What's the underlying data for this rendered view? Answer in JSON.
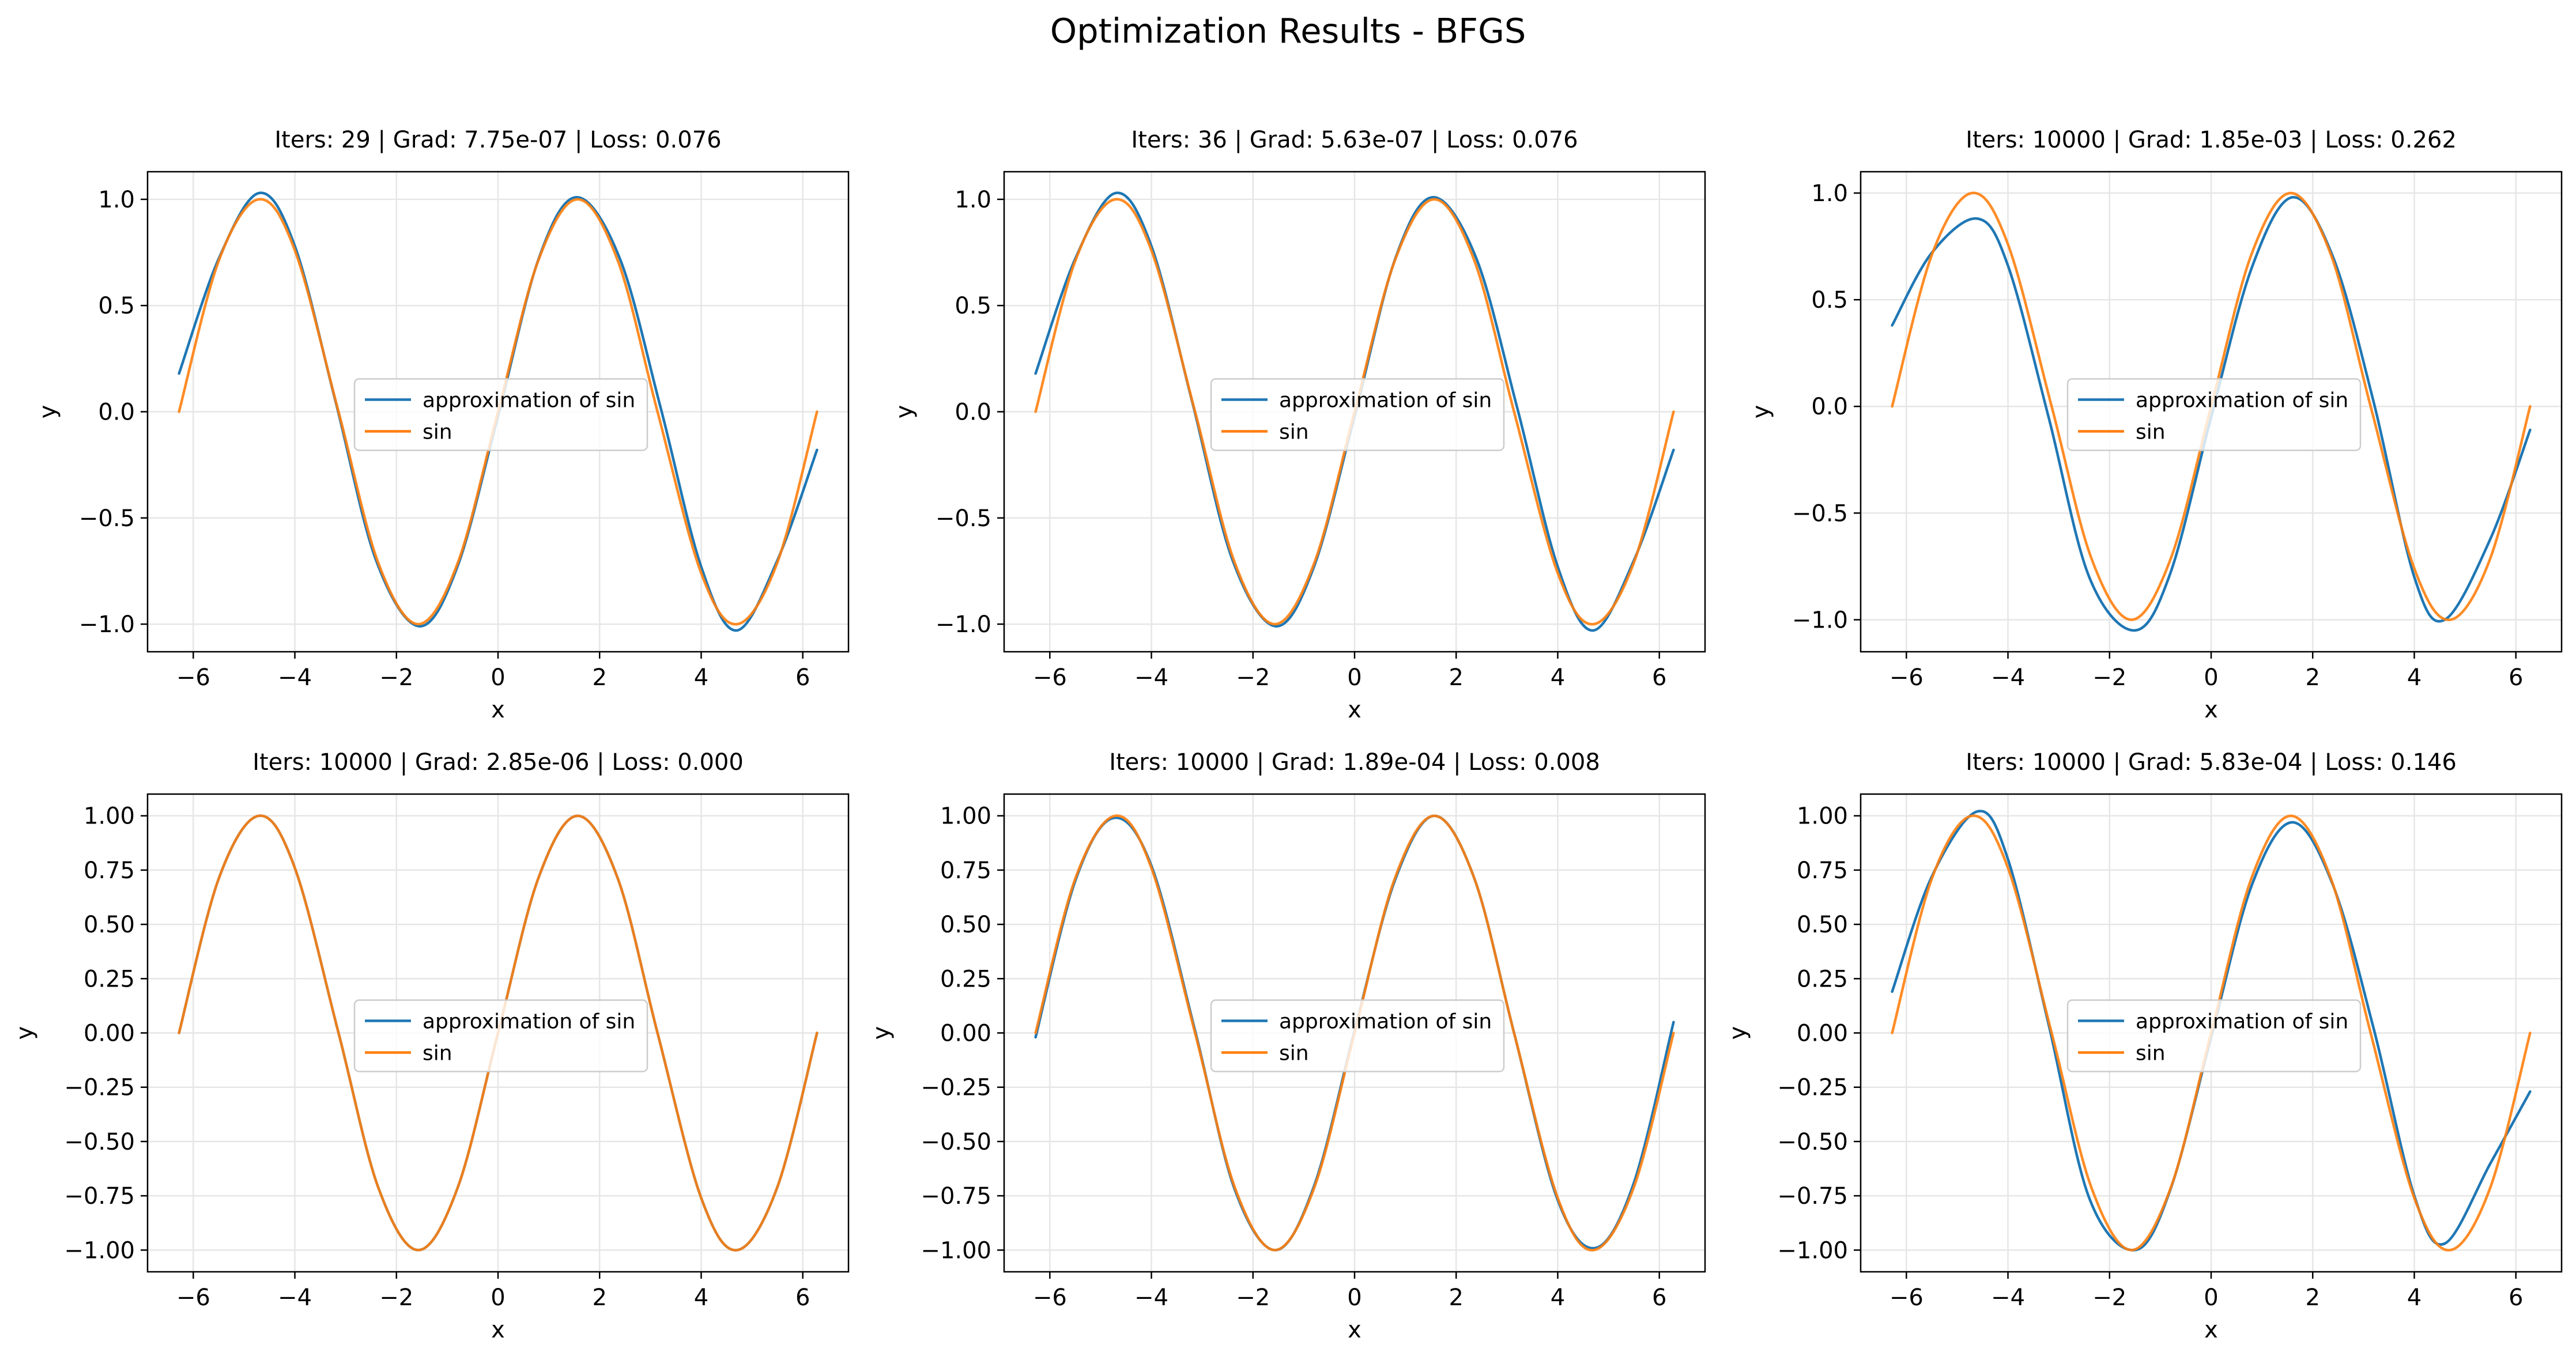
{
  "suptitle": "Optimization Results - BFGS",
  "colors": {
    "approx": "#1f77b4",
    "sin": "#ff7f0e",
    "grid": "#e6e6e6",
    "axis": "#000000",
    "legend_border": "#cccccc"
  },
  "legend_labels": [
    "approximation of sin",
    "sin"
  ],
  "chart_data": [
    {
      "type": "line",
      "title": "Iters: 29 | Grad: 7.75e-07 | Loss: 0.076",
      "xlabel": "x",
      "ylabel": "y",
      "xlim": [
        -6.9,
        6.9
      ],
      "ylim": [
        -1.13,
        1.13
      ],
      "xticks": [
        -6,
        -4,
        -2,
        0,
        2,
        4,
        6
      ],
      "yticks": [
        -1.0,
        -0.5,
        0.0,
        0.5,
        1.0
      ],
      "ytick_labels": [
        "−1.0",
        "−0.5",
        "0.0",
        "0.5",
        "1.0"
      ],
      "grid": true,
      "legend_position": "center",
      "series": [
        {
          "name": "approximation of sin",
          "x": [
            -6.28,
            -5.5,
            -4.7,
            -4.0,
            -3.2,
            -2.4,
            -1.55,
            -0.8,
            0.0,
            0.8,
            1.55,
            2.4,
            3.2,
            4.0,
            4.7,
            5.5,
            6.28
          ],
          "y": [
            0.18,
            0.72,
            1.03,
            0.78,
            0.05,
            -0.7,
            -1.01,
            -0.73,
            -0.02,
            0.72,
            1.01,
            0.72,
            0.02,
            -0.73,
            -1.03,
            -0.7,
            -0.18
          ]
        },
        {
          "name": "sin",
          "x": [
            -6.28,
            -5.5,
            -4.71,
            -4.0,
            -3.14,
            -2.36,
            -1.57,
            -0.79,
            0.0,
            0.79,
            1.57,
            2.36,
            3.14,
            4.0,
            4.71,
            5.5,
            6.28
          ],
          "y": [
            0.0,
            0.71,
            1.0,
            0.76,
            0.0,
            -0.71,
            -1.0,
            -0.71,
            0.0,
            0.71,
            1.0,
            0.71,
            0.0,
            -0.76,
            -1.0,
            -0.71,
            0.0
          ]
        }
      ]
    },
    {
      "type": "line",
      "title": "Iters: 36 | Grad: 5.63e-07 | Loss: 0.076",
      "xlabel": "x",
      "ylabel": "y",
      "xlim": [
        -6.9,
        6.9
      ],
      "ylim": [
        -1.13,
        1.13
      ],
      "xticks": [
        -6,
        -4,
        -2,
        0,
        2,
        4,
        6
      ],
      "yticks": [
        -1.0,
        -0.5,
        0.0,
        0.5,
        1.0
      ],
      "ytick_labels": [
        "−1.0",
        "−0.5",
        "0.0",
        "0.5",
        "1.0"
      ],
      "grid": true,
      "legend_position": "center",
      "series": [
        {
          "name": "approximation of sin",
          "x": [
            -6.28,
            -5.5,
            -4.7,
            -4.0,
            -3.2,
            -2.4,
            -1.55,
            -0.8,
            0.0,
            0.8,
            1.55,
            2.4,
            3.2,
            4.0,
            4.7,
            5.5,
            6.28
          ],
          "y": [
            0.18,
            0.72,
            1.03,
            0.78,
            0.05,
            -0.7,
            -1.01,
            -0.73,
            -0.02,
            0.72,
            1.01,
            0.72,
            0.02,
            -0.73,
            -1.03,
            -0.7,
            -0.18
          ]
        },
        {
          "name": "sin",
          "x": [
            -6.28,
            -5.5,
            -4.71,
            -4.0,
            -3.14,
            -2.36,
            -1.57,
            -0.79,
            0.0,
            0.79,
            1.57,
            2.36,
            3.14,
            4.0,
            4.71,
            5.5,
            6.28
          ],
          "y": [
            0.0,
            0.71,
            1.0,
            0.76,
            0.0,
            -0.71,
            -1.0,
            -0.71,
            0.0,
            0.71,
            1.0,
            0.71,
            0.0,
            -0.76,
            -1.0,
            -0.71,
            0.0
          ]
        }
      ]
    },
    {
      "type": "line",
      "title": "Iters: 10000 | Grad: 1.85e-03 | Loss: 0.262",
      "xlabel": "x",
      "ylabel": "y",
      "xlim": [
        -6.9,
        6.9
      ],
      "ylim": [
        -1.15,
        1.1
      ],
      "xticks": [
        -6,
        -4,
        -2,
        0,
        2,
        4,
        6
      ],
      "yticks": [
        -1.0,
        -0.5,
        0.0,
        0.5,
        1.0
      ],
      "ytick_labels": [
        "−1.0",
        "−0.5",
        "0.0",
        "0.5",
        "1.0"
      ],
      "grid": true,
      "legend_position": "center",
      "series": [
        {
          "name": "approximation of sin",
          "x": [
            -6.28,
            -5.5,
            -4.6,
            -4.0,
            -3.2,
            -2.4,
            -1.5,
            -0.8,
            0.0,
            0.8,
            1.6,
            2.4,
            3.2,
            4.0,
            4.6,
            5.5,
            6.28
          ],
          "y": [
            0.38,
            0.72,
            0.88,
            0.66,
            -0.05,
            -0.8,
            -1.05,
            -0.78,
            -0.05,
            0.65,
            0.98,
            0.7,
            0.02,
            -0.8,
            -1.0,
            -0.62,
            -0.11
          ]
        },
        {
          "name": "sin",
          "x": [
            -6.28,
            -5.5,
            -4.71,
            -4.0,
            -3.14,
            -2.36,
            -1.57,
            -0.79,
            0.0,
            0.79,
            1.57,
            2.36,
            3.14,
            4.0,
            4.71,
            5.5,
            6.28
          ],
          "y": [
            0.0,
            0.71,
            1.0,
            0.76,
            0.0,
            -0.71,
            -1.0,
            -0.71,
            0.0,
            0.71,
            1.0,
            0.71,
            0.0,
            -0.76,
            -1.0,
            -0.71,
            0.0
          ]
        }
      ]
    },
    {
      "type": "line",
      "title": "Iters: 10000 | Grad: 2.85e-06 | Loss: 0.000",
      "xlabel": "x",
      "ylabel": "y",
      "xlim": [
        -6.9,
        6.9
      ],
      "ylim": [
        -1.1,
        1.1
      ],
      "xticks": [
        -6,
        -4,
        -2,
        0,
        2,
        4,
        6
      ],
      "yticks": [
        -1.0,
        -0.75,
        -0.5,
        -0.25,
        0.0,
        0.25,
        0.5,
        0.75,
        1.0
      ],
      "ytick_labels": [
        "−1.00",
        "−0.75",
        "−0.50",
        "−0.25",
        "0.00",
        "0.25",
        "0.50",
        "0.75",
        "1.00"
      ],
      "grid": true,
      "legend_position": "center",
      "series": [
        {
          "name": "approximation of sin",
          "x": [
            -6.28,
            -5.5,
            -4.71,
            -4.0,
            -3.14,
            -2.36,
            -1.57,
            -0.79,
            0.0,
            0.79,
            1.57,
            2.36,
            3.14,
            4.0,
            4.71,
            5.5,
            6.28
          ],
          "y": [
            0.0,
            0.71,
            1.0,
            0.76,
            0.0,
            -0.71,
            -1.0,
            -0.71,
            0.0,
            0.71,
            1.0,
            0.71,
            0.0,
            -0.76,
            -1.0,
            -0.71,
            0.0
          ]
        },
        {
          "name": "sin",
          "x": [
            -6.28,
            -5.5,
            -4.71,
            -4.0,
            -3.14,
            -2.36,
            -1.57,
            -0.79,
            0.0,
            0.79,
            1.57,
            2.36,
            3.14,
            4.0,
            4.71,
            5.5,
            6.28
          ],
          "y": [
            0.0,
            0.71,
            1.0,
            0.76,
            0.0,
            -0.71,
            -1.0,
            -0.71,
            0.0,
            0.71,
            1.0,
            0.71,
            0.0,
            -0.76,
            -1.0,
            -0.71,
            0.0
          ]
        }
      ]
    },
    {
      "type": "line",
      "title": "Iters: 10000 | Grad: 1.89e-04 | Loss: 0.008",
      "xlabel": "x",
      "ylabel": "y",
      "xlim": [
        -6.9,
        6.9
      ],
      "ylim": [
        -1.1,
        1.1
      ],
      "xticks": [
        -6,
        -4,
        -2,
        0,
        2,
        4,
        6
      ],
      "yticks": [
        -1.0,
        -0.75,
        -0.5,
        -0.25,
        0.0,
        0.25,
        0.5,
        0.75,
        1.0
      ],
      "ytick_labels": [
        "−1.00",
        "−0.75",
        "−0.50",
        "−0.25",
        "0.00",
        "0.25",
        "0.50",
        "0.75",
        "1.00"
      ],
      "grid": true,
      "legend_position": "center",
      "series": [
        {
          "name": "approximation of sin",
          "x": [
            -6.28,
            -5.5,
            -4.75,
            -4.0,
            -3.14,
            -2.36,
            -1.55,
            -0.79,
            0.0,
            0.79,
            1.57,
            2.36,
            3.14,
            4.0,
            4.75,
            5.5,
            6.28
          ],
          "y": [
            -0.02,
            0.7,
            0.99,
            0.77,
            0.01,
            -0.72,
            -1.0,
            -0.7,
            0.01,
            0.7,
            1.0,
            0.71,
            0.0,
            -0.77,
            -0.99,
            -0.69,
            0.05
          ]
        },
        {
          "name": "sin",
          "x": [
            -6.28,
            -5.5,
            -4.71,
            -4.0,
            -3.14,
            -2.36,
            -1.57,
            -0.79,
            0.0,
            0.79,
            1.57,
            2.36,
            3.14,
            4.0,
            4.71,
            5.5,
            6.28
          ],
          "y": [
            0.0,
            0.71,
            1.0,
            0.76,
            0.0,
            -0.71,
            -1.0,
            -0.71,
            0.0,
            0.71,
            1.0,
            0.71,
            0.0,
            -0.76,
            -1.0,
            -0.71,
            0.0
          ]
        }
      ]
    },
    {
      "type": "line",
      "title": "Iters: 10000 | Grad: 5.83e-04 | Loss: 0.146",
      "xlabel": "x",
      "ylabel": "y",
      "xlim": [
        -6.9,
        6.9
      ],
      "ylim": [
        -1.1,
        1.1
      ],
      "xticks": [
        -6,
        -4,
        -2,
        0,
        2,
        4,
        6
      ],
      "yticks": [
        -1.0,
        -0.75,
        -0.5,
        -0.25,
        0.0,
        0.25,
        0.5,
        0.75,
        1.0
      ],
      "ytick_labels": [
        "−1.00",
        "−0.75",
        "−0.50",
        "−0.25",
        "0.00",
        "0.25",
        "0.50",
        "0.75",
        "1.00"
      ],
      "grid": true,
      "legend_position": "center",
      "series": [
        {
          "name": "approximation of sin",
          "x": [
            -6.28,
            -5.5,
            -4.6,
            -4.0,
            -3.2,
            -2.4,
            -1.5,
            -0.8,
            0.0,
            0.8,
            1.6,
            2.4,
            3.2,
            4.0,
            4.6,
            5.5,
            6.28
          ],
          "y": [
            0.19,
            0.72,
            1.02,
            0.8,
            0.04,
            -0.76,
            -1.0,
            -0.72,
            -0.02,
            0.68,
            0.97,
            0.68,
            0.02,
            -0.75,
            -0.97,
            -0.6,
            -0.27
          ]
        },
        {
          "name": "sin",
          "x": [
            -6.28,
            -5.5,
            -4.71,
            -4.0,
            -3.14,
            -2.36,
            -1.57,
            -0.79,
            0.0,
            0.79,
            1.57,
            2.36,
            3.14,
            4.0,
            4.71,
            5.5,
            6.28
          ],
          "y": [
            0.0,
            0.71,
            1.0,
            0.76,
            0.0,
            -0.71,
            -1.0,
            -0.71,
            0.0,
            0.71,
            1.0,
            0.71,
            0.0,
            -0.76,
            -1.0,
            -0.71,
            0.0
          ]
        }
      ]
    }
  ]
}
